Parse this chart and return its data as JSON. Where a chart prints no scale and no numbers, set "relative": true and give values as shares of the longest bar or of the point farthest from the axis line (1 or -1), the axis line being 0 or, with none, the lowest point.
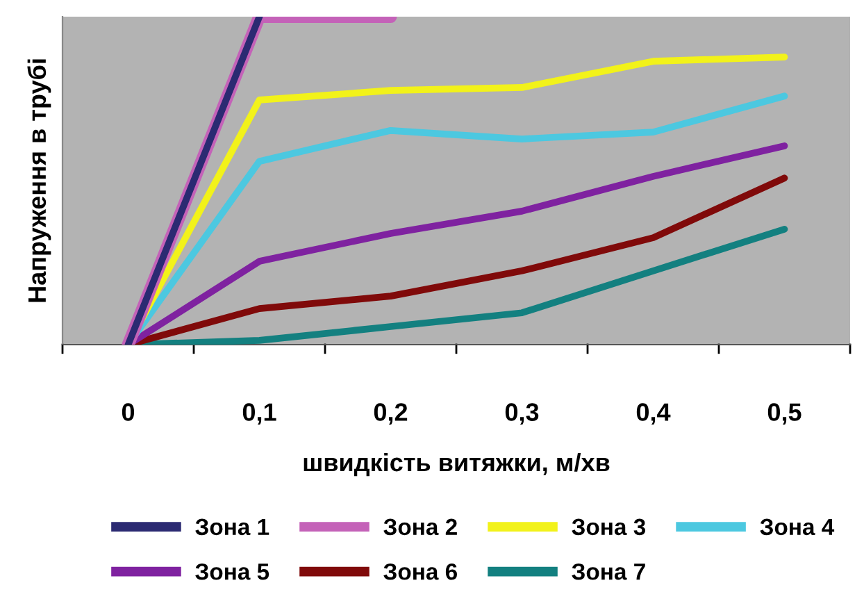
{
  "chart_data": {
    "type": "line",
    "relative": true,
    "xlabel": "швидкість витяжки, м/хв",
    "ylabel": "Напруження в трубі",
    "categories": [
      "0",
      "0,1",
      "0,2",
      "0,3",
      "0,4",
      "0,5"
    ],
    "series": [
      {
        "name": "Зона 1",
        "color": "#2b2a72",
        "values": [
          0,
          1,
          null,
          null,
          null,
          null
        ]
      },
      {
        "name": "Зона 2",
        "color": "#c462b8",
        "values": [
          0,
          1,
          1,
          null,
          null,
          null
        ]
      },
      {
        "name": "Зона 3",
        "color": "#f2f21a",
        "values": [
          0,
          0.746,
          0.775,
          0.784,
          0.864,
          0.877
        ]
      },
      {
        "name": "Зона 4",
        "color": "#4cc8e0",
        "values": [
          0,
          0.559,
          0.653,
          0.627,
          0.648,
          0.758
        ]
      },
      {
        "name": "Зона 5",
        "color": "#7f22a0",
        "values": [
          0,
          0.254,
          0.339,
          0.407,
          0.513,
          0.606
        ]
      },
      {
        "name": "Зона 6",
        "color": "#800a0a",
        "values": [
          0,
          0.11,
          0.148,
          0.225,
          0.326,
          0.508
        ]
      },
      {
        "name": "Зона 7",
        "color": "#138080",
        "values": [
          0,
          0.013,
          0.055,
          0.097,
          0.225,
          0.352
        ]
      }
    ],
    "legend": "bottom",
    "marker": "none",
    "line_style": "solid"
  }
}
